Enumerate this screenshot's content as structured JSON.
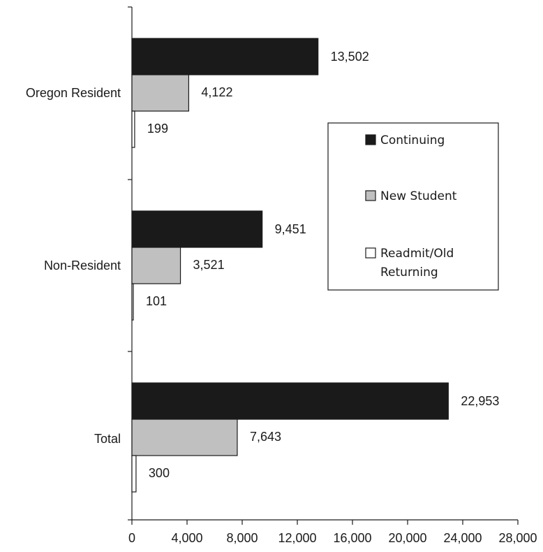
{
  "chart_data": {
    "type": "bar",
    "orientation": "horizontal",
    "categories": [
      "Oregon Resident",
      "Non-Resident",
      "Total"
    ],
    "series": [
      {
        "name": "Continuing",
        "values": [
          13502,
          9451,
          22953
        ],
        "labels": [
          "13,502",
          "9,451",
          "22,953"
        ],
        "color": "#1a1a1a"
      },
      {
        "name": "New Student",
        "values": [
          4122,
          3521,
          7643
        ],
        "labels": [
          "4,122",
          "3,521",
          "7,643"
        ],
        "color": "#c0c0c0"
      },
      {
        "name": "Readmit/Old Returning",
        "values": [
          199,
          101,
          300
        ],
        "labels": [
          "199",
          "101",
          "300"
        ],
        "color": "#ffffff"
      }
    ],
    "legend": {
      "placement": "right",
      "entries": [
        {
          "line1": "Continuing"
        },
        {
          "line1": "New Student"
        },
        {
          "line1": "Readmit/Old",
          "line2": "Returning"
        }
      ]
    },
    "xlim": [
      0,
      28000
    ],
    "xticks": [
      0,
      4000,
      8000,
      12000,
      16000,
      20000,
      24000,
      28000
    ],
    "xtick_labels": [
      "0",
      "4,000",
      "8,000",
      "12,000",
      "16,000",
      "20,000",
      "24,000",
      "28,000"
    ],
    "grid": false,
    "title": "",
    "xlabel": "",
    "ylabel": ""
  }
}
